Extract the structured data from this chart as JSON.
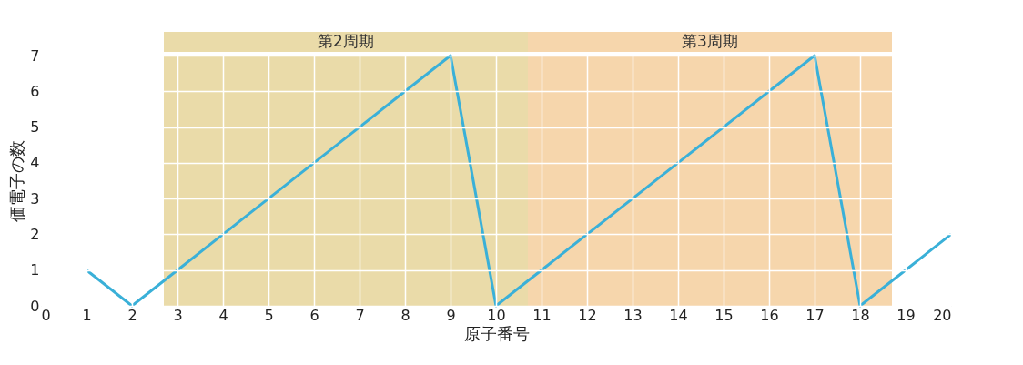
{
  "chart_data": {
    "type": "line",
    "xlabel": "原子番号",
    "ylabel": "価電子の数",
    "x": [
      1,
      2,
      3,
      4,
      5,
      6,
      7,
      8,
      9,
      10,
      11,
      12,
      13,
      14,
      15,
      16,
      17,
      18,
      19,
      20
    ],
    "series": [
      {
        "color": "#3ab0d8",
        "values": [
          1,
          0,
          1,
          2,
          3,
          4,
          5,
          6,
          7,
          0,
          1,
          2,
          3,
          4,
          5,
          6,
          7,
          0,
          1,
          2
        ]
      }
    ],
    "xlim": [
      0,
      20
    ],
    "xticks": [
      0,
      1,
      2,
      3,
      4,
      5,
      6,
      7,
      8,
      9,
      10,
      11,
      12,
      13,
      14,
      15,
      16,
      17,
      18,
      19,
      20
    ],
    "ylim": [
      0,
      7
    ],
    "yticks": [
      0,
      1,
      2,
      3,
      4,
      5,
      6,
      7
    ],
    "bands": [
      {
        "axis": "x",
        "from": 2.7,
        "to": 10.7,
        "label": "第2周期",
        "color": "#e3cf8c"
      },
      {
        "axis": "x",
        "from": 10.7,
        "to": 18.7,
        "label": "第3周期",
        "color": "#f3c890"
      }
    ],
    "grid": true,
    "marker": "none",
    "line_style": "solid"
  }
}
